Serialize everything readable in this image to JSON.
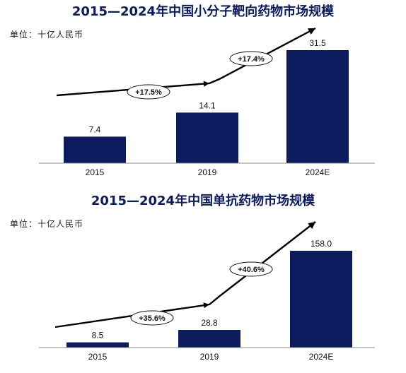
{
  "chart_data": [
    {
      "type": "bar",
      "title": "2015—2024年中国小分子靶向药物市场规模",
      "unit": "单位：十亿人民币",
      "categories": [
        "2015",
        "2019",
        "2024E"
      ],
      "values": [
        7.4,
        14.1,
        31.5
      ],
      "value_labels": [
        "7.4",
        "14.1",
        "31.5"
      ],
      "growth_rates": [
        "+17.5%",
        "+17.4%"
      ],
      "color": "#0d1c5e"
    },
    {
      "type": "bar",
      "title": "2015—2024年中国单抗药物市场规模",
      "unit": "单位：十亿人民币",
      "categories": [
        "2015",
        "2019",
        "2024E"
      ],
      "values": [
        8.5,
        28.8,
        158.0
      ],
      "value_labels": [
        "8.5",
        "28.8",
        "158.0"
      ],
      "growth_rates": [
        "+35.6%",
        "+40.6%"
      ],
      "color": "#0d1c5e"
    }
  ]
}
